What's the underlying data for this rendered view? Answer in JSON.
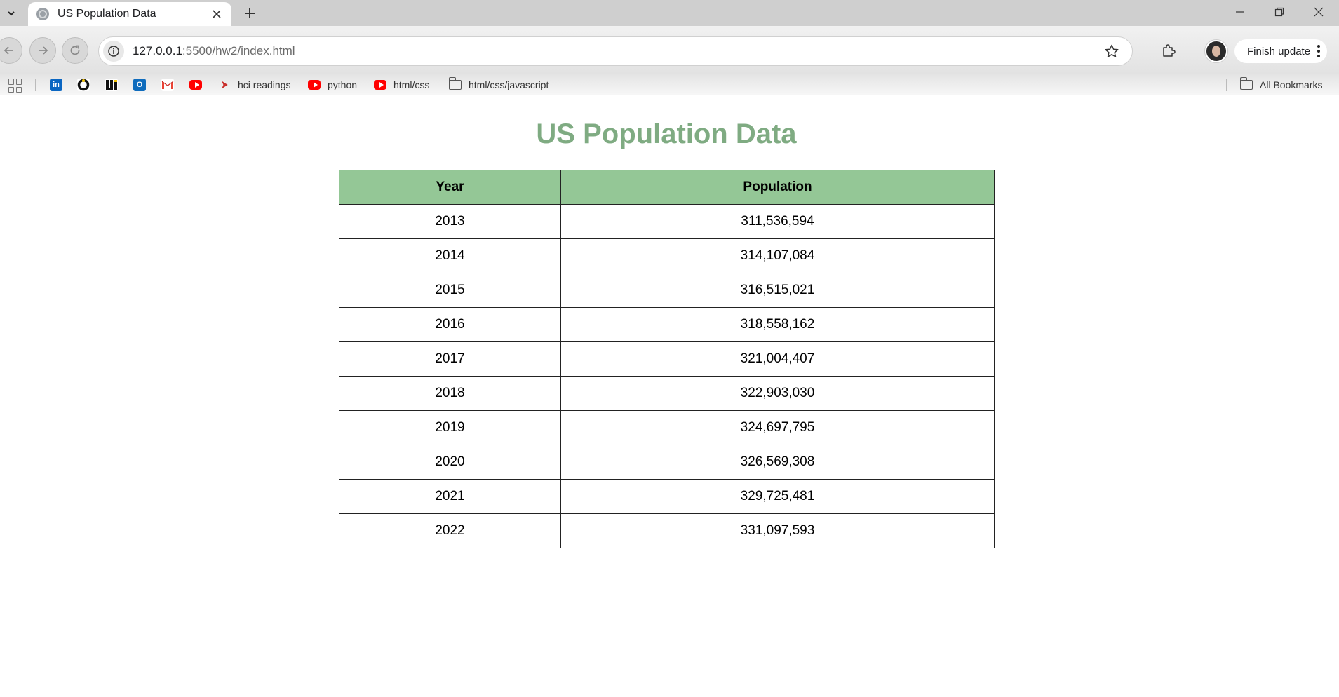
{
  "browser": {
    "tab": {
      "title": "US Population Data"
    },
    "address": {
      "host": "127.0.0.1",
      "rest": ":5500/hw2/index.html"
    },
    "finish_update_label": "Finish update",
    "bookmarks": [
      {
        "label": "hci readings",
        "icon": "bookmark-flag-icon"
      },
      {
        "label": "python",
        "icon": "youtube-icon"
      },
      {
        "label": "html/css",
        "icon": "youtube-icon"
      },
      {
        "label": "html/css/javascript",
        "icon": "folder-icon"
      }
    ],
    "bookmark_icons": [
      "linkedin-icon",
      "circle-app-icon",
      "ui-app-icon",
      "outlook-icon",
      "gmail-icon",
      "youtube-icon"
    ],
    "all_bookmarks_label": "All Bookmarks"
  },
  "page": {
    "title": "US Population Data",
    "table": {
      "headers": [
        "Year",
        "Population"
      ],
      "rows": [
        [
          "2013",
          "311,536,594"
        ],
        [
          "2014",
          "314,107,084"
        ],
        [
          "2015",
          "316,515,021"
        ],
        [
          "2016",
          "318,558,162"
        ],
        [
          "2017",
          "321,004,407"
        ],
        [
          "2018",
          "322,903,030"
        ],
        [
          "2019",
          "324,697,795"
        ],
        [
          "2020",
          "326,569,308"
        ],
        [
          "2021",
          "329,725,481"
        ],
        [
          "2022",
          "331,097,593"
        ]
      ]
    }
  },
  "colors": {
    "title": "#7fab82",
    "header_bg": "#94c796"
  }
}
